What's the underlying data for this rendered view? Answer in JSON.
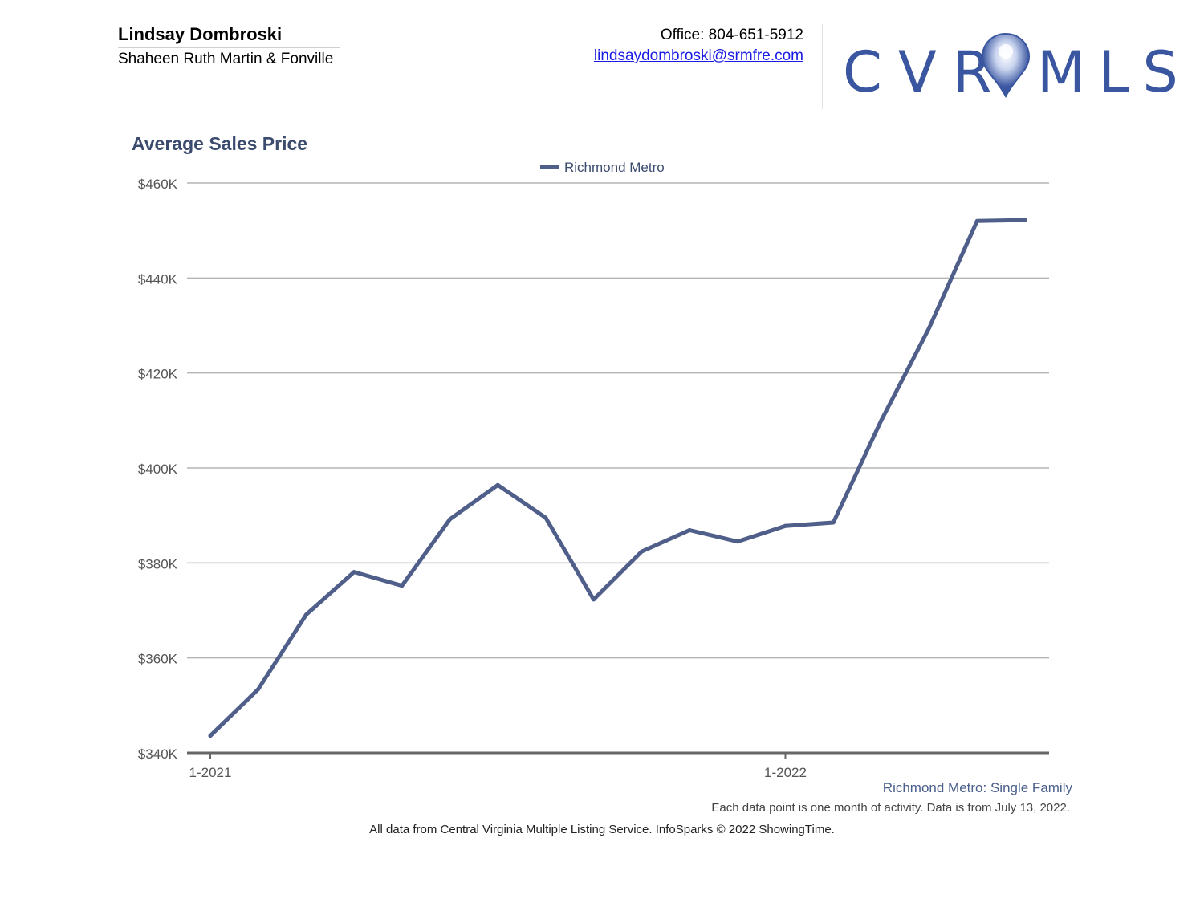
{
  "agent": {
    "name": "Lindsay Dombroski",
    "company": "Shaheen Ruth Martin & Fonville"
  },
  "contact": {
    "office": "Office: 804-651-5912",
    "email": "lindsaydombroski@srmfre.com"
  },
  "logo": {
    "text_left": "CVR",
    "text_right": "MLS",
    "color": "#3a56a0"
  },
  "notes": {
    "series_note": "Richmond Metro: Single Family",
    "data_note": "Each data point is one month of activity. Data is from July 13, 2022.",
    "footer": "All data from Central Virginia Multiple Listing Service. InfoSparks © 2022 ShowingTime."
  },
  "chart_data": {
    "type": "line",
    "title": "Average Sales Price",
    "xlabel": "",
    "ylabel": "",
    "ylim": [
      340000,
      460000
    ],
    "yticks": [
      340000,
      360000,
      380000,
      400000,
      420000,
      440000,
      460000
    ],
    "ytick_labels": [
      "$340K",
      "$360K",
      "$380K",
      "$400K",
      "$420K",
      "$440K",
      "$460K"
    ],
    "x": [
      "2021-01",
      "2021-02",
      "2021-03",
      "2021-04",
      "2021-05",
      "2021-06",
      "2021-07",
      "2021-08",
      "2021-09",
      "2021-10",
      "2021-11",
      "2021-12",
      "2022-01",
      "2022-02",
      "2022-03",
      "2022-04",
      "2022-05",
      "2022-06"
    ],
    "xticks": [
      "2021-01",
      "2022-01"
    ],
    "xtick_labels": [
      "1-2021",
      "1-2022"
    ],
    "legend": "top-center",
    "grid": true,
    "series": [
      {
        "name": "Richmond Metro",
        "color": "#4f5f8a",
        "values": [
          343600,
          353400,
          369100,
          378100,
          375200,
          389200,
          396400,
          389500,
          372300,
          382400,
          386900,
          384500,
          387800,
          388500,
          410000,
          429500,
          452000,
          452200
        ]
      }
    ]
  }
}
